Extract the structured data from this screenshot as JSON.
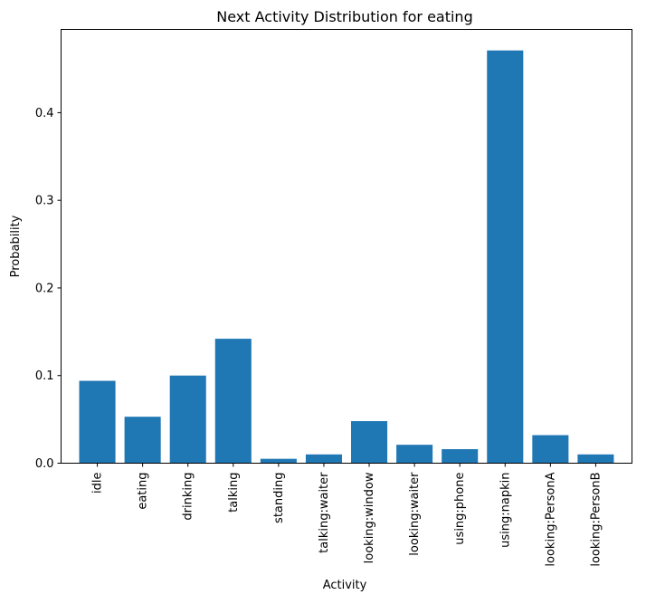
{
  "chart_data": {
    "type": "bar",
    "title": "Next Activity Distribution for eating",
    "xlabel": "Activity",
    "ylabel": "Probability",
    "categories": [
      "idle",
      "eating",
      "drinking",
      "talking",
      "standing",
      "talking:waiter",
      "looking:window",
      "looking:waiter",
      "using:phone",
      "using:napkin",
      "looking:PersonA",
      "looking:PersonB"
    ],
    "values": [
      0.094,
      0.053,
      0.1,
      0.142,
      0.005,
      0.01,
      0.048,
      0.021,
      0.016,
      0.471,
      0.032,
      0.01
    ],
    "ylim": [
      0,
      0.495
    ],
    "yticks": [
      0.0,
      0.1,
      0.2,
      0.3,
      0.4
    ],
    "ytick_labels": [
      "0.0",
      "0.1",
      "0.2",
      "0.3",
      "0.4"
    ],
    "bar_color": "#1f77b4",
    "grid": false,
    "legend": "none"
  }
}
